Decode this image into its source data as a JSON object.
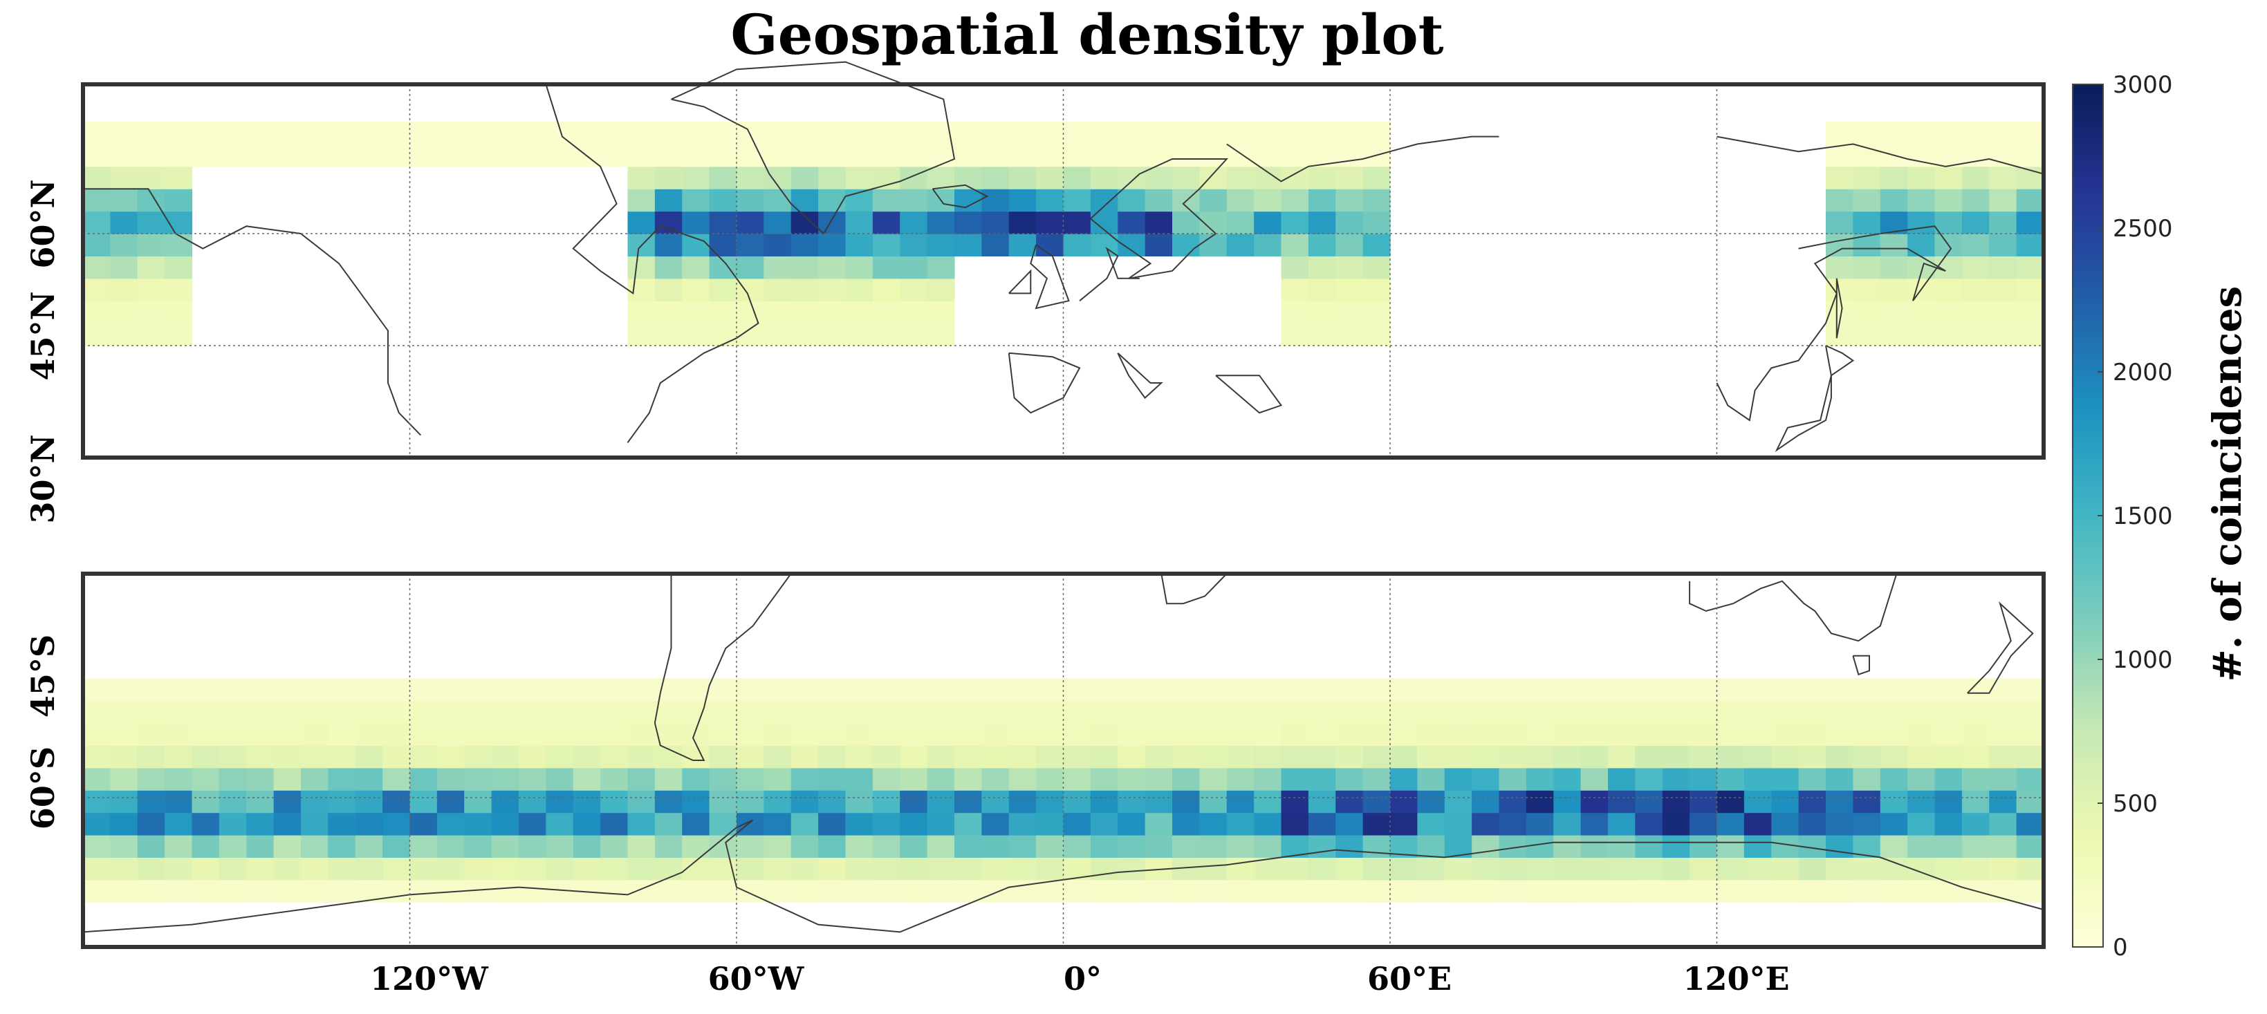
{
  "title": "Geospatial density plot",
  "colorbar": {
    "label": "#. of coincidences",
    "min": 0,
    "max": 3000,
    "ticks": [
      "0",
      "500",
      "1000",
      "1500",
      "2000",
      "2500",
      "3000"
    ],
    "colors": [
      "#ffffd9",
      "#edf8b1",
      "#c7e9b4",
      "#7fcdbb",
      "#41b6c4",
      "#1d91c0",
      "#225ea8",
      "#253494",
      "#081d58"
    ]
  },
  "x_axis": {
    "ticks": [
      "120°W",
      "60°W",
      "0°",
      "60°E",
      "120°E"
    ],
    "tick_lons": [
      -120,
      -60,
      0,
      60,
      120
    ],
    "range": [
      -180,
      180
    ]
  },
  "panels": [
    {
      "id": "north",
      "lat_range": [
        30,
        80
      ],
      "lat_gridlines": [
        45,
        60
      ],
      "y_ticks": [
        "30°N",
        "45°N",
        "60°N"
      ],
      "y_tick_lats": [
        30,
        45,
        60
      ],
      "data_band": [
        45,
        75
      ]
    },
    {
      "id": "south",
      "lat_range": [
        -80,
        -30
      ],
      "lat_gridlines": [
        -60
      ],
      "y_ticks": [
        "45°S",
        "60°S"
      ],
      "y_tick_lats": [
        -45,
        -60
      ],
      "data_band": [
        -74,
        -44
      ]
    }
  ]
}
